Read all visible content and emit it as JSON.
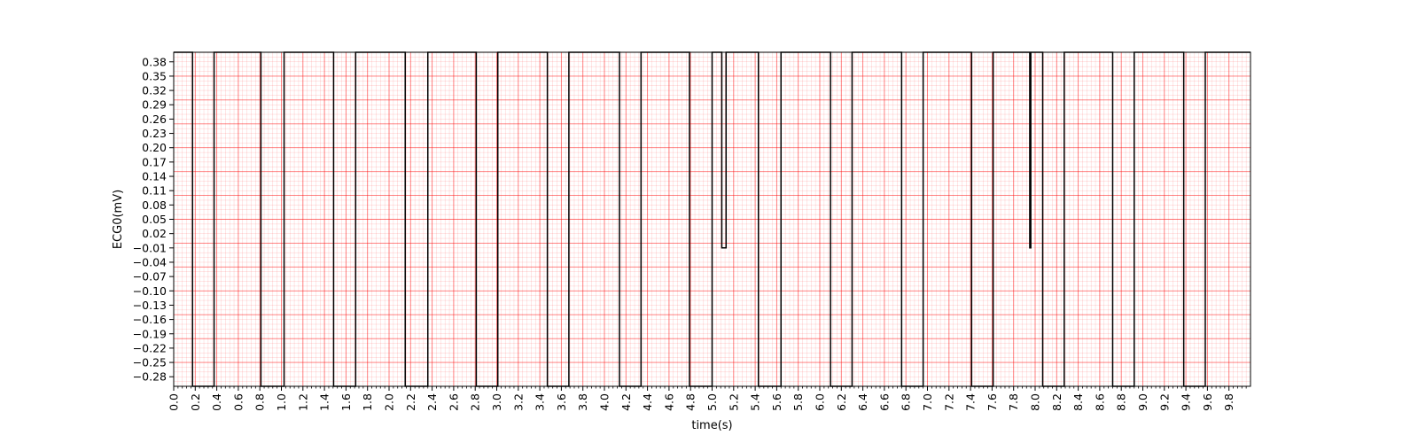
{
  "chart_data": {
    "type": "line",
    "title": "",
    "xlabel": "time(s)",
    "ylabel": "ECG0(mV)",
    "xlim": [
      0.0,
      10.0
    ],
    "ylim": [
      -0.3,
      0.4
    ],
    "x_ticks": [
      "0.0",
      "0.2",
      "0.4",
      "0.6",
      "0.8",
      "1.0",
      "1.2",
      "1.4",
      "1.6",
      "1.8",
      "2.0",
      "2.2",
      "2.4",
      "2.6",
      "2.8",
      "3.0",
      "3.2",
      "3.4",
      "3.6",
      "3.8",
      "4.0",
      "4.2",
      "4.4",
      "4.6",
      "4.8",
      "5.0",
      "5.2",
      "5.4",
      "5.6",
      "5.8",
      "6.0",
      "6.2",
      "6.4",
      "6.6",
      "6.8",
      "7.0",
      "7.2",
      "7.4",
      "7.6",
      "7.8",
      "8.0",
      "8.2",
      "8.4",
      "8.6",
      "8.8",
      "9.0",
      "9.2",
      "9.4",
      "9.6",
      "9.8"
    ],
    "y_ticks": [
      "0.38",
      "0.35",
      "0.32",
      "0.29",
      "0.26",
      "0.23",
      "0.20",
      "0.17",
      "0.14",
      "0.11",
      "0.08",
      "0.05",
      "0.02",
      "−0.01",
      "−0.04",
      "−0.07",
      "−0.10",
      "−0.13",
      "−0.16",
      "−0.19",
      "−0.22",
      "−0.25",
      "−0.28"
    ],
    "grid": "ECG paper (red major/minor grid)",
    "grid_color": "#ff0000",
    "line_color": "#000000",
    "series": [
      {
        "x": [
          0.0,
          0.175,
          0.175,
          0.375,
          0.375,
          0.81,
          0.81,
          1.025,
          1.025,
          1.485,
          1.485,
          1.69,
          1.69,
          2.15,
          2.15,
          2.36,
          2.36,
          2.81,
          2.81,
          3.01,
          3.01,
          3.47,
          3.47,
          3.67,
          3.67,
          4.14,
          4.14,
          4.34,
          4.34,
          4.79,
          4.79,
          5.0,
          5.0,
          5.09,
          5.09,
          5.13,
          5.13,
          5.43,
          5.43,
          5.64,
          5.64,
          6.1,
          6.1,
          6.3,
          6.3,
          6.76,
          6.76,
          6.96,
          6.96,
          7.41,
          7.41,
          7.61,
          7.61,
          7.95,
          7.95,
          7.96,
          7.96,
          8.07,
          8.07,
          8.27,
          8.27,
          8.72,
          8.72,
          8.92,
          8.92,
          9.38,
          9.38,
          9.58,
          9.58,
          10.0
        ],
        "y": [
          0.4,
          0.4,
          -0.3,
          -0.3,
          0.4,
          0.4,
          -0.3,
          -0.3,
          0.4,
          0.4,
          -0.3,
          -0.3,
          0.4,
          0.4,
          -0.3,
          -0.3,
          0.4,
          0.4,
          -0.3,
          -0.3,
          0.4,
          0.4,
          -0.3,
          -0.3,
          0.4,
          0.4,
          -0.3,
          -0.3,
          0.4,
          0.4,
          -0.3,
          -0.3,
          0.4,
          0.4,
          -0.01,
          -0.01,
          0.4,
          0.4,
          -0.3,
          -0.3,
          0.4,
          0.4,
          -0.3,
          -0.3,
          0.4,
          0.4,
          -0.3,
          -0.3,
          0.4,
          0.4,
          -0.3,
          -0.3,
          0.4,
          0.4,
          -0.01,
          -0.01,
          0.4,
          0.4,
          -0.3,
          -0.3,
          0.4,
          0.4,
          -0.3,
          -0.3,
          0.4,
          0.4,
          -0.3,
          -0.3,
          0.4,
          0.4
        ]
      }
    ]
  }
}
